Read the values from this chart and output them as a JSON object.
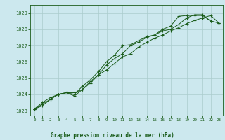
{
  "title": "Graphe pression niveau de la mer (hPa)",
  "bg_color": "#cce8ee",
  "grid_color": "#aacccc",
  "line_color": "#1a5c1a",
  "marker_color": "#1a5c1a",
  "xlim": [
    -0.5,
    23.5
  ],
  "ylim": [
    1022.7,
    1029.5
  ],
  "xticks": [
    0,
    1,
    2,
    3,
    4,
    5,
    6,
    7,
    8,
    9,
    10,
    11,
    12,
    13,
    14,
    15,
    16,
    17,
    18,
    19,
    20,
    21,
    22,
    23
  ],
  "yticks": [
    1023,
    1024,
    1025,
    1026,
    1027,
    1028,
    1029
  ],
  "series1": [
    [
      0,
      1023.1
    ],
    [
      1,
      1023.5
    ],
    [
      2,
      1023.8
    ],
    [
      3,
      1024.0
    ],
    [
      4,
      1024.1
    ],
    [
      5,
      1023.9
    ],
    [
      6,
      1024.3
    ],
    [
      7,
      1024.8
    ],
    [
      8,
      1025.2
    ],
    [
      9,
      1025.8
    ],
    [
      10,
      1026.2
    ],
    [
      11,
      1026.5
    ],
    [
      12,
      1027.0
    ],
    [
      13,
      1027.2
    ],
    [
      14,
      1027.5
    ],
    [
      15,
      1027.65
    ],
    [
      16,
      1027.9
    ],
    [
      17,
      1028.0
    ],
    [
      18,
      1028.3
    ],
    [
      19,
      1028.7
    ],
    [
      20,
      1028.9
    ],
    [
      21,
      1028.9
    ],
    [
      22,
      1028.5
    ],
    [
      23,
      1028.4
    ]
  ],
  "series2": [
    [
      0,
      1023.1
    ],
    [
      1,
      1023.4
    ],
    [
      2,
      1023.7
    ],
    [
      3,
      1024.0
    ],
    [
      4,
      1024.1
    ],
    [
      5,
      1024.0
    ],
    [
      6,
      1024.5
    ],
    [
      7,
      1024.9
    ],
    [
      8,
      1025.4
    ],
    [
      9,
      1026.0
    ],
    [
      10,
      1026.4
    ],
    [
      11,
      1027.0
    ],
    [
      12,
      1027.05
    ],
    [
      13,
      1027.3
    ],
    [
      14,
      1027.55
    ],
    [
      15,
      1027.65
    ],
    [
      16,
      1028.0
    ],
    [
      17,
      1028.2
    ],
    [
      18,
      1028.8
    ],
    [
      19,
      1028.85
    ],
    [
      20,
      1028.85
    ],
    [
      21,
      1028.85
    ],
    [
      22,
      1028.5
    ],
    [
      23,
      1028.4
    ]
  ],
  "series3": [
    [
      0,
      1023.1
    ],
    [
      1,
      1023.3
    ],
    [
      2,
      1023.7
    ],
    [
      3,
      1024.0
    ],
    [
      4,
      1024.1
    ],
    [
      5,
      1024.1
    ],
    [
      6,
      1024.3
    ],
    [
      7,
      1024.7
    ],
    [
      8,
      1025.2
    ],
    [
      9,
      1025.5
    ],
    [
      10,
      1025.9
    ],
    [
      11,
      1026.3
    ],
    [
      12,
      1026.5
    ],
    [
      13,
      1026.9
    ],
    [
      14,
      1027.2
    ],
    [
      15,
      1027.45
    ],
    [
      16,
      1027.65
    ],
    [
      17,
      1027.9
    ],
    [
      18,
      1028.1
    ],
    [
      19,
      1028.35
    ],
    [
      20,
      1028.55
    ],
    [
      21,
      1028.7
    ],
    [
      22,
      1028.85
    ],
    [
      23,
      1028.4
    ]
  ]
}
